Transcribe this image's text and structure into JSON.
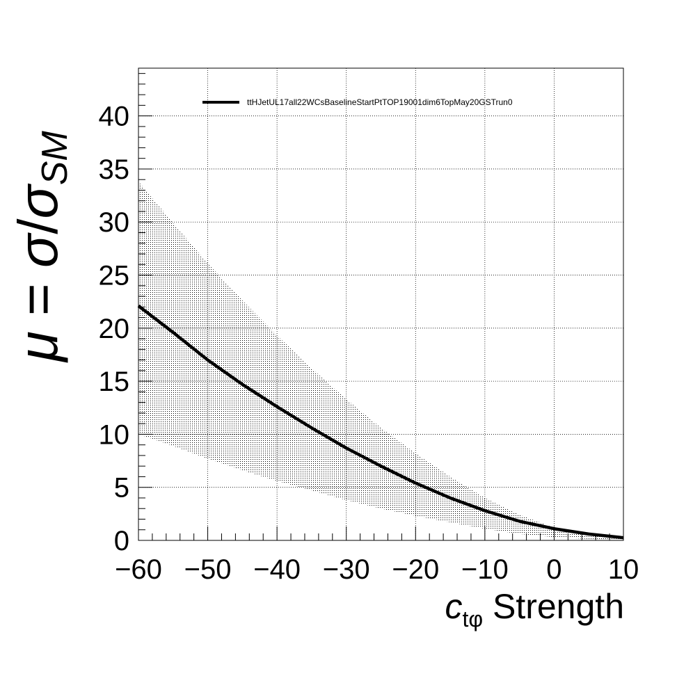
{
  "chart_data": {
    "type": "line",
    "xlabel_main": "c",
    "xlabel_sub": "tφ",
    "xlabel_rest": " Strength",
    "ylabel_mu": "μ",
    "ylabel_eq": " = ",
    "ylabel_sigma1": "σ",
    "ylabel_slash": "/",
    "ylabel_sigma2": "σ",
    "ylabel_sub": "SM",
    "xlim": [
      -60,
      10
    ],
    "ylim": [
      0,
      44.5
    ],
    "xticks": [
      -60,
      -50,
      -40,
      -30,
      -20,
      -10,
      0,
      10
    ],
    "xtick_labels": [
      "−60",
      "−50",
      "−40",
      "−30",
      "−20",
      "−10",
      "0",
      "10"
    ],
    "yticks": [
      0,
      5,
      10,
      15,
      20,
      25,
      30,
      35,
      40
    ],
    "ytick_labels": [
      "0",
      "5",
      "10",
      "15",
      "20",
      "25",
      "30",
      "35",
      "40"
    ],
    "grid": true,
    "legend_position": "top",
    "series": [
      {
        "name": "ttHJetUL17all22WCsBaselineStartPtTOP19001dim6TopMay20GSTrun0",
        "color": "#000000",
        "x": [
          -60,
          -55,
          -50,
          -45,
          -40,
          -35,
          -30,
          -25,
          -20,
          -15,
          -10,
          -5,
          0,
          5,
          10
        ],
        "y": [
          22.1,
          19.6,
          17.0,
          14.7,
          12.6,
          10.6,
          8.7,
          7.0,
          5.4,
          4.0,
          2.8,
          1.8,
          1.1,
          0.6,
          0.25
        ],
        "band_upper": [
          33.8,
          29.9,
          26.1,
          22.6,
          19.3,
          16.2,
          13.3,
          10.6,
          8.2,
          6.0,
          4.0,
          2.4,
          1.2,
          0.55,
          0.25
        ],
        "band_lower": [
          10.0,
          8.9,
          7.7,
          6.6,
          5.6,
          4.7,
          3.8,
          3.0,
          2.3,
          1.7,
          1.1,
          0.6,
          0.3,
          0.12,
          0.05
        ]
      }
    ]
  }
}
